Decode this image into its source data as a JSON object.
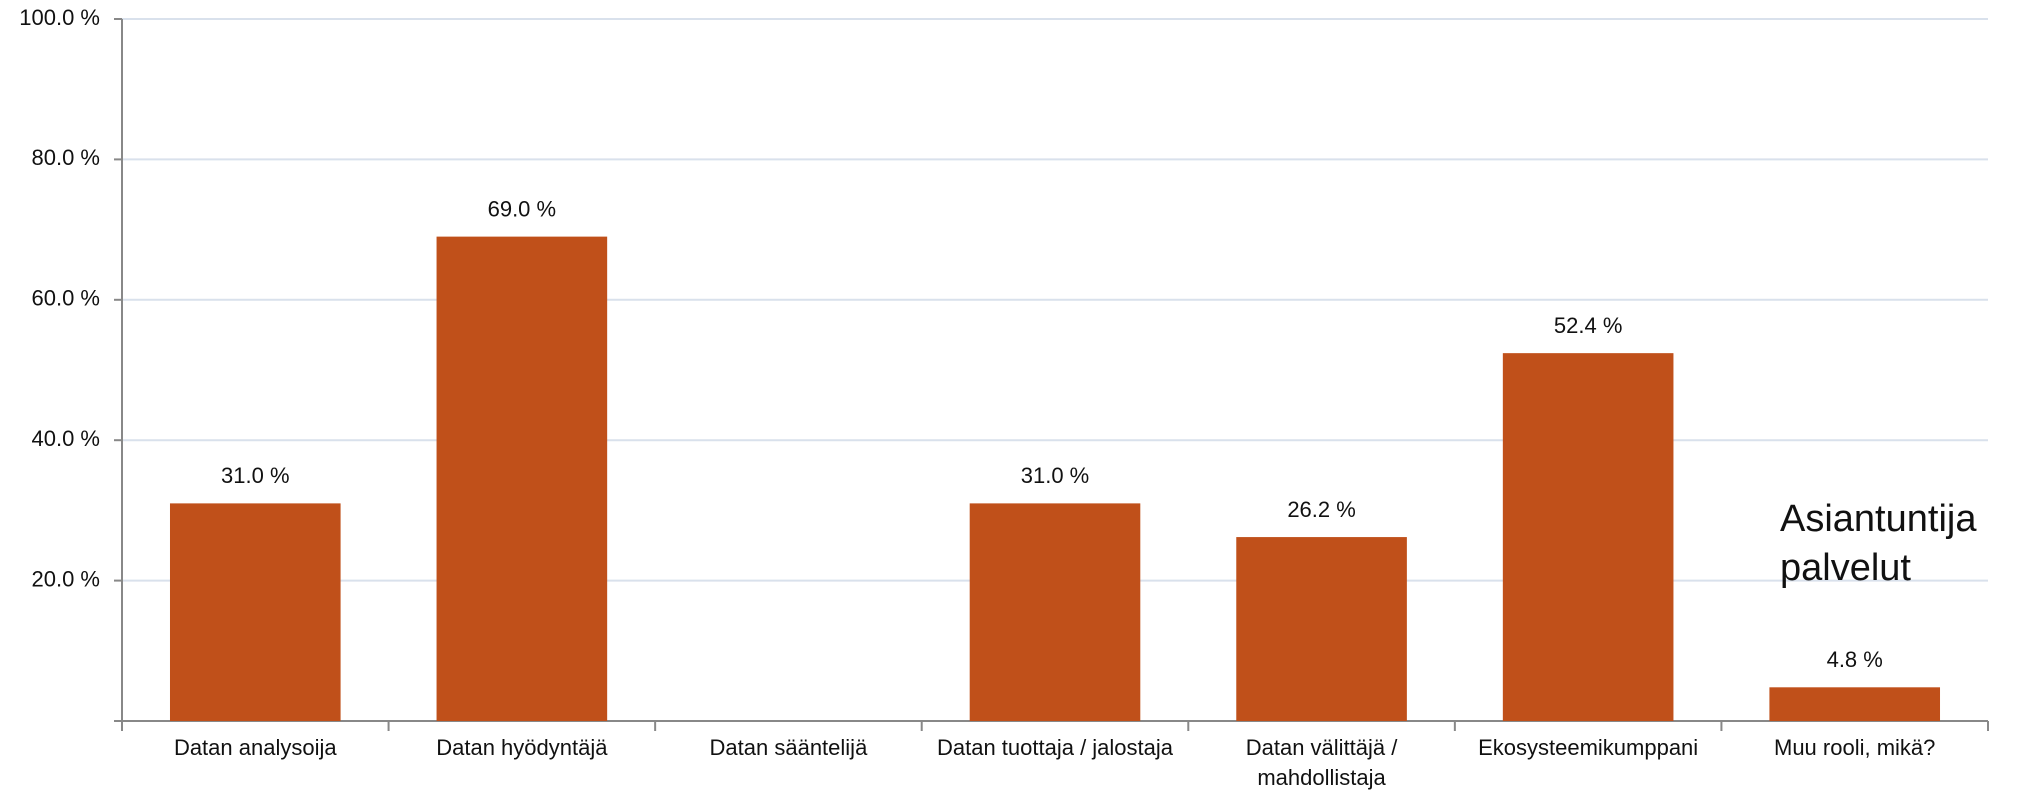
{
  "chart_data": {
    "type": "bar",
    "categories": [
      "Datan analysoija",
      "Datan hyödyntäjä",
      "Datan sääntelijä",
      "Datan tuottaja / jalostaja",
      "Datan välittäjä / mahdollistaja",
      "Ekosysteemikumppani",
      "Muu rooli, mikä?"
    ],
    "values": [
      31.0,
      69.0,
      null,
      31.0,
      26.2,
      52.4,
      4.8
    ],
    "value_labels": [
      "31.0 %",
      "69.0 %",
      null,
      "31.0 %",
      "26.2 %",
      "52.4 %",
      "4.8 %"
    ],
    "color": "#c0501a",
    "ylim": [
      0,
      100
    ],
    "yticks": [
      {
        "value": 20,
        "label": "20.0 %"
      },
      {
        "value": 40,
        "label": "40.0 %"
      },
      {
        "value": 60,
        "label": "60.0 %"
      },
      {
        "value": 80,
        "label": "80.0 %"
      },
      {
        "value": 100,
        "label": "100.0 %"
      }
    ],
    "grid": true,
    "annotation": [
      "Asiantuntija",
      "palvelut"
    ]
  }
}
